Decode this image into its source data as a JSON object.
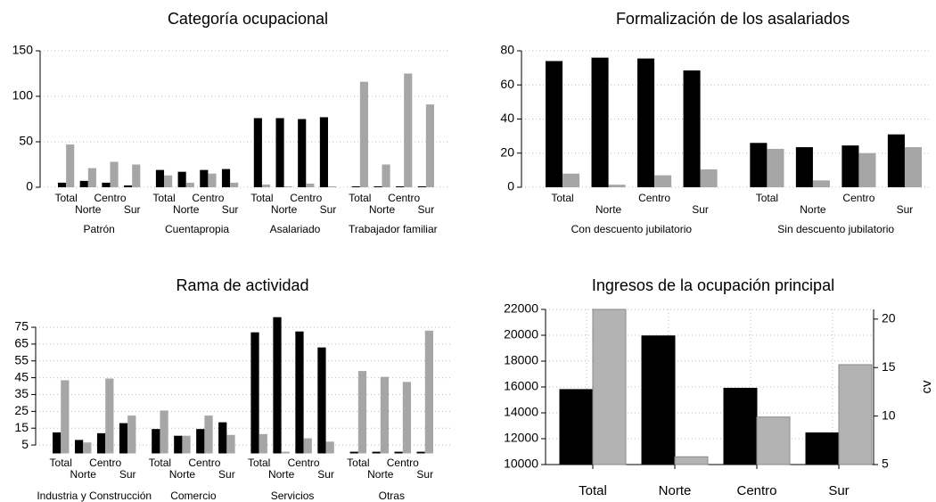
{
  "chart_data": [
    {
      "type": "bar",
      "title": "Categoría ocupacional",
      "groups": [
        "Patrón",
        "Cuentapropia",
        "Asalariado",
        "Trabajador familiar"
      ],
      "categories": [
        "Total",
        "Norte",
        "Centro",
        "Sur"
      ],
      "series": [
        {
          "color": "#000000",
          "values": [
            [
              5,
              7,
              5,
              2
            ],
            [
              19,
              17,
              19,
              20
            ],
            [
              76,
              76,
              75,
              77
            ],
            [
              1,
              1,
              1,
              1
            ]
          ]
        },
        {
          "color": "#a6a6a6",
          "values": [
            [
              47,
              21,
              28,
              25
            ],
            [
              13,
              5,
              15,
              5
            ],
            [
              3,
              1,
              4,
              1
            ],
            [
              116,
              25,
              125,
              91
            ]
          ]
        }
      ],
      "ylim": [
        0,
        150
      ],
      "yticks": [
        0,
        50,
        100,
        150
      ],
      "grid": true
    },
    {
      "type": "bar",
      "title": "Formalización de los asalariados",
      "groups": [
        "Con descuento jubilatorio",
        "Sin descuento jubilatorio"
      ],
      "categories": [
        "Total",
        "Norte",
        "Centro",
        "Sur"
      ],
      "series": [
        {
          "color": "#000000",
          "values": [
            [
              74,
              76,
              75.5,
              68.5
            ],
            [
              26,
              23.5,
              24.5,
              31
            ]
          ]
        },
        {
          "color": "#a6a6a6",
          "values": [
            [
              8,
              1.5,
              7,
              10.5
            ],
            [
              22.5,
              4,
              20,
              23.5
            ]
          ]
        }
      ],
      "ylim": [
        0,
        80
      ],
      "yticks": [
        0,
        20,
        40,
        60,
        80
      ],
      "grid": true
    },
    {
      "type": "bar",
      "title": "Rama de actividad",
      "groups": [
        "Industria y Construcción",
        "Comercio",
        "Servicios",
        "Otras"
      ],
      "categories": [
        "Total",
        "Norte",
        "Centro",
        "Sur"
      ],
      "series": [
        {
          "color": "#000000",
          "values": [
            [
              12.5,
              8,
              12,
              18
            ],
            [
              14.5,
              10.5,
              14.5,
              18.5
            ],
            [
              72,
              81,
              72.5,
              63
            ],
            [
              1,
              1,
              1,
              1
            ]
          ]
        },
        {
          "color": "#a6a6a6",
          "values": [
            [
              43.5,
              6.5,
              44.5,
              22.5
            ],
            [
              25.5,
              10.5,
              22.5,
              11
            ],
            [
              11.5,
              1,
              9,
              7
            ],
            [
              49,
              45.5,
              42.5,
              73
            ]
          ]
        }
      ],
      "ylim": [
        0,
        80
      ],
      "yticks": [
        5,
        15,
        25,
        35,
        45,
        55,
        65,
        75
      ],
      "grid": true
    },
    {
      "type": "bar",
      "title": "Ingresos de la ocupación principal",
      "categories": [
        "Total",
        "Norte",
        "Centro",
        "Sur"
      ],
      "y2label": "cv",
      "series": [
        {
          "color": "#000000",
          "values": [
            15800,
            19950,
            15900,
            12450
          ]
        },
        {
          "color": "#b3b3b3",
          "axis": "y2",
          "values": [
            21,
            5.8,
            9.9,
            15.3
          ]
        }
      ],
      "ylim": [
        10000,
        22000
      ],
      "yticks": [
        10000,
        12000,
        14000,
        16000,
        18000,
        20000,
        22000
      ],
      "y2lim": [
        5,
        21
      ],
      "y2ticks": [
        5,
        10,
        15,
        20
      ],
      "grid": true
    }
  ]
}
